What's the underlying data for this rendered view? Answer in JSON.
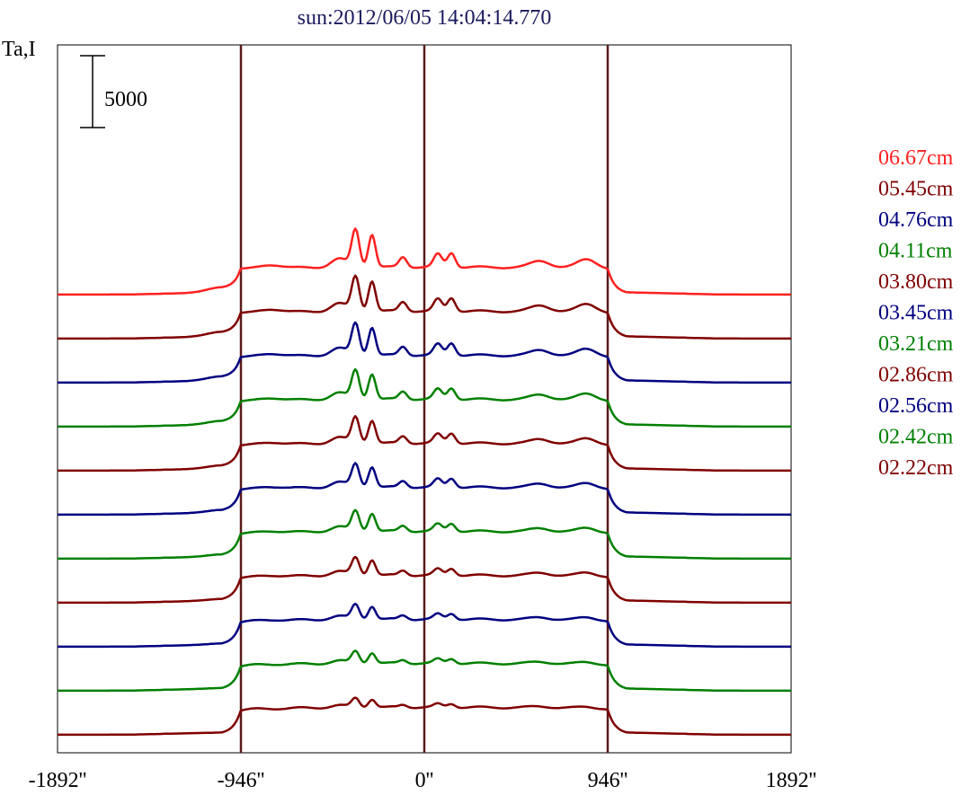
{
  "chart_data": {
    "type": "line",
    "title": "sun:2012/06/05 14:04:14.770",
    "ylabel": "Ta,I",
    "scale_bar_label": "5000",
    "scale_bar_value": 5000,
    "xlim": [
      -1892,
      1892
    ],
    "x_ticks": [
      -1892,
      -946,
      0,
      946,
      1892
    ],
    "x_tick_labels": [
      "-1892''",
      "-946''",
      "0''",
      "946''",
      "1892''"
    ],
    "vertical_lines_at": [
      -946,
      0,
      946
    ],
    "vertical_line_color": "#5a1a1a",
    "series_offset": 3125,
    "legend_position": "right",
    "series": [
      {
        "name": "06.67cm",
        "color": "#ff2020",
        "offset_index": 10
      },
      {
        "name": "05.45cm",
        "color": "#800000",
        "offset_index": 9
      },
      {
        "name": "04.76cm",
        "color": "#000080",
        "offset_index": 8
      },
      {
        "name": "04.11cm",
        "color": "#008000",
        "offset_index": 7
      },
      {
        "name": "03.80cm",
        "color": "#800000",
        "offset_index": 6
      },
      {
        "name": "03.45cm",
        "color": "#000080",
        "offset_index": 5
      },
      {
        "name": "03.21cm",
        "color": "#008000",
        "offset_index": 4
      },
      {
        "name": "02.86cm",
        "color": "#800000",
        "offset_index": 3
      },
      {
        "name": "02.56cm",
        "color": "#000080",
        "offset_index": 2
      },
      {
        "name": "02.42cm",
        "color": "#008000",
        "offset_index": 1
      },
      {
        "name": "02.22cm",
        "color": "#800000",
        "offset_index": 0
      }
    ]
  }
}
